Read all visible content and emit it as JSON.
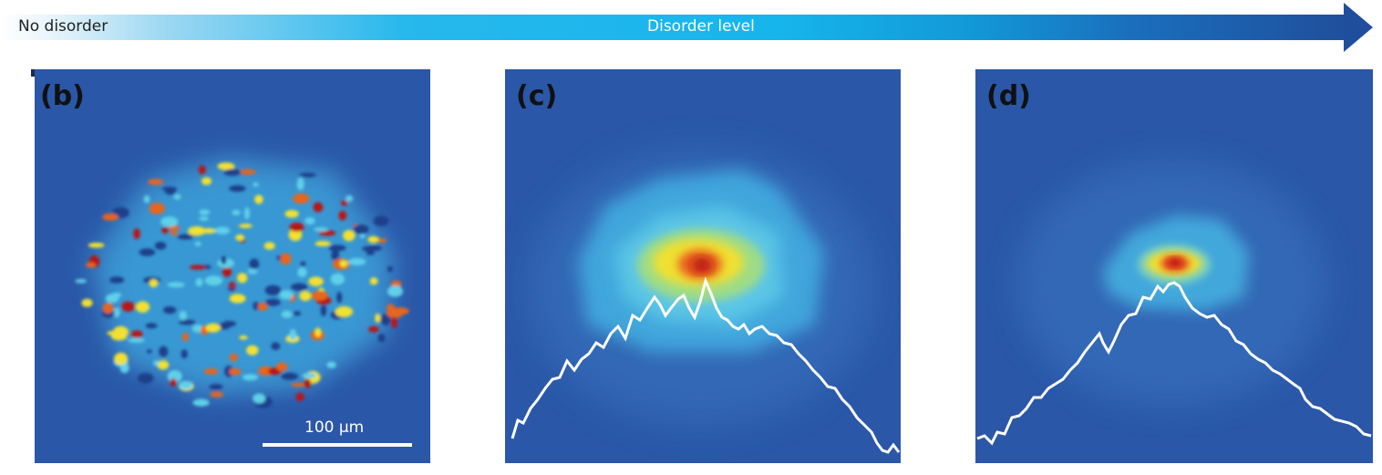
{
  "arrow": {
    "left_label": "No disorder",
    "center_label": "Disorder level"
  },
  "panels": [
    {
      "label": "(b)"
    },
    {
      "label": "(c)"
    },
    {
      "label": "(d)"
    }
  ],
  "scale_bar": {
    "label": "100 μm"
  },
  "colors": {
    "background_blue": "#2a57a8",
    "arrow_end": "#1f4f9c",
    "arrow_mid": "#16b5ec",
    "speckle_hot": "#c0221a",
    "speckle_warm": "#f2e030"
  }
}
